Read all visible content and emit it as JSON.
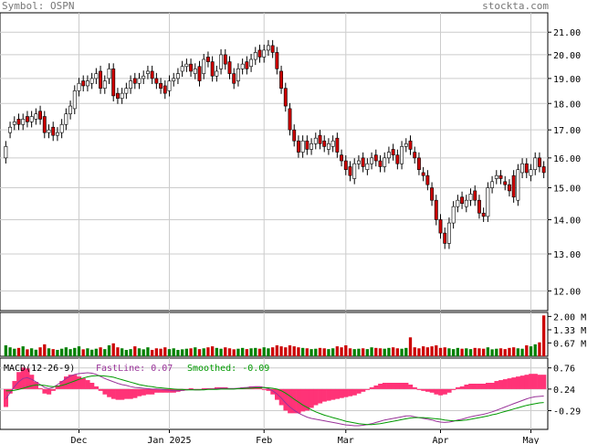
{
  "header": {
    "symbol": "Symbol: OSPN",
    "site": "stockta.com"
  },
  "colors": {
    "up": "#ffffff",
    "down": "#cc0000",
    "vol_up": "#008000",
    "vol_down": "#cc0000",
    "fast": "#993399",
    "smooth": "#009900",
    "hist": "#ff3377",
    "grid": "#cccccc"
  },
  "chart_data": [
    {
      "type": "candlestick",
      "ticker": "OSPN",
      "x_tick_labels": [
        "Dec",
        "Jan 2025",
        "Feb",
        "Mar",
        "Apr",
        "May"
      ],
      "y_tick_labels": [
        "21.00",
        "20.00",
        "19.00",
        "18.00",
        "17.00",
        "16.00",
        "15.00",
        "14.00",
        "13.00",
        "12.00"
      ],
      "y_ticks": [
        21,
        20,
        19,
        18,
        17,
        16,
        15,
        14,
        13,
        12
      ],
      "ylim": [
        11.5,
        21.9
      ],
      "scale": "log",
      "grid": true,
      "month_start_index": [
        17,
        38,
        60,
        79,
        101,
        122
      ],
      "close": [
        16.4,
        17.1,
        17.3,
        17.2,
        17.4,
        17.3,
        17.5,
        17.6,
        17.4,
        16.9,
        17.0,
        16.8,
        16.9,
        17.2,
        17.6,
        17.9,
        18.5,
        18.8,
        18.7,
        18.9,
        19.0,
        19.2,
        18.6,
        18.9,
        19.4,
        18.3,
        18.2,
        18.4,
        18.6,
        18.9,
        18.8,
        19.0,
        19.1,
        19.3,
        19.0,
        18.8,
        18.6,
        18.4,
        18.9,
        19.0,
        19.2,
        19.5,
        19.6,
        19.3,
        19.4,
        18.9,
        19.8,
        19.7,
        19.1,
        19.3,
        20.0,
        19.6,
        19.2,
        18.8,
        19.4,
        19.6,
        19.4,
        19.8,
        20.1,
        19.9,
        20.2,
        20.4,
        20.1,
        19.4,
        18.6,
        17.9,
        17.0,
        16.6,
        16.2,
        16.6,
        16.3,
        16.5,
        16.7,
        16.5,
        16.4,
        16.5,
        16.6,
        16.2,
        15.9,
        15.6,
        15.4,
        15.8,
        15.9,
        15.7,
        15.8,
        16.0,
        15.9,
        15.7,
        16.0,
        16.2,
        16.1,
        15.8,
        16.4,
        16.5,
        16.3,
        16.0,
        15.6,
        15.4,
        15.1,
        14.6,
        14.0,
        13.6,
        13.3,
        13.9,
        14.4,
        14.6,
        14.5,
        14.6,
        14.8,
        14.6,
        14.2,
        14.1,
        15.0,
        15.2,
        15.4,
        15.3,
        15.1,
        14.9,
        14.7,
        15.6,
        15.8,
        15.5,
        15.6,
        16.0,
        15.7,
        15.5
      ],
      "open": [
        16.0,
        16.9,
        17.2,
        17.4,
        17.2,
        17.5,
        17.3,
        17.4,
        17.7,
        17.5,
        16.9,
        17.1,
        16.8,
        16.9,
        17.2,
        17.6,
        17.8,
        18.5,
        18.9,
        18.7,
        18.8,
        19.0,
        19.3,
        18.6,
        19.0,
        19.4,
        18.4,
        18.2,
        18.4,
        18.6,
        19.0,
        18.8,
        19.0,
        19.2,
        19.3,
        19.0,
        18.8,
        18.7,
        18.5,
        18.9,
        19.0,
        19.3,
        19.5,
        19.6,
        19.2,
        19.5,
        19.2,
        19.9,
        19.7,
        19.1,
        19.4,
        20.0,
        19.7,
        19.2,
        18.9,
        19.4,
        19.7,
        19.5,
        19.8,
        20.2,
        19.9,
        20.2,
        20.4,
        20.1,
        19.3,
        18.6,
        17.8,
        17.0,
        16.6,
        16.2,
        16.6,
        16.3,
        16.5,
        16.8,
        16.6,
        16.3,
        16.4,
        16.7,
        16.1,
        15.9,
        15.7,
        15.3,
        15.8,
        16.0,
        15.6,
        15.8,
        16.1,
        15.9,
        15.7,
        16.0,
        16.3,
        16.1,
        15.8,
        16.4,
        16.6,
        16.2,
        16.0,
        15.5,
        15.4,
        15.0,
        14.6,
        14.0,
        13.6,
        13.3,
        13.9,
        14.4,
        14.7,
        14.4,
        14.6,
        14.9,
        14.6,
        14.2,
        14.1,
        15.0,
        15.3,
        15.4,
        15.2,
        15.1,
        15.4,
        14.6,
        15.5,
        15.8,
        15.4,
        15.6,
        16.0,
        15.7
      ]
    },
    {
      "type": "bar",
      "name": "Volume",
      "y_tick_labels": [
        "2.00 M",
        "1.33 M",
        "0.67 M"
      ],
      "y_ticks": [
        2.0,
        1.33,
        0.67
      ],
      "ylim": [
        0,
        2.2
      ],
      "values": [
        0.55,
        0.45,
        0.38,
        0.42,
        0.5,
        0.35,
        0.4,
        0.33,
        0.45,
        0.6,
        0.4,
        0.36,
        0.32,
        0.38,
        0.45,
        0.36,
        0.42,
        0.5,
        0.35,
        0.4,
        0.33,
        0.38,
        0.45,
        0.36,
        0.55,
        0.65,
        0.45,
        0.4,
        0.32,
        0.36,
        0.5,
        0.4,
        0.35,
        0.45,
        0.32,
        0.4,
        0.38,
        0.45,
        0.36,
        0.4,
        0.32,
        0.35,
        0.38,
        0.4,
        0.45,
        0.36,
        0.4,
        0.45,
        0.5,
        0.42,
        0.38,
        0.45,
        0.4,
        0.35,
        0.38,
        0.42,
        0.36,
        0.4,
        0.42,
        0.38,
        0.45,
        0.4,
        0.45,
        0.55,
        0.5,
        0.45,
        0.55,
        0.5,
        0.45,
        0.42,
        0.4,
        0.36,
        0.38,
        0.42,
        0.4,
        0.36,
        0.4,
        0.5,
        0.45,
        0.55,
        0.4,
        0.36,
        0.38,
        0.4,
        0.36,
        0.45,
        0.42,
        0.4,
        0.38,
        0.42,
        0.45,
        0.4,
        0.38,
        0.42,
        0.95,
        0.45,
        0.4,
        0.5,
        0.45,
        0.5,
        0.55,
        0.42,
        0.45,
        0.4,
        0.36,
        0.42,
        0.38,
        0.4,
        0.36,
        0.42,
        0.4,
        0.38,
        0.45,
        0.35,
        0.38,
        0.4,
        0.36,
        0.42,
        0.45,
        0.4,
        0.38,
        0.55,
        0.5,
        0.6,
        0.7,
        2.05
      ]
    },
    {
      "type": "line",
      "name": "MACD",
      "title": "MACD(12-26-9)",
      "fast_label": "FastLine: 0.07",
      "smooth_label": "Smoothed: -0.09",
      "y_tick_labels": [
        "0.76",
        "0.24",
        "-0.29"
      ],
      "y_ticks": [
        0.76,
        0.24,
        -0.29
      ],
      "ylim": [
        -0.75,
        1.0
      ],
      "fast": [
        0.0,
        0.15,
        0.3,
        0.42,
        0.5,
        0.52,
        0.48,
        0.42,
        0.35,
        0.28,
        0.25,
        0.28,
        0.35,
        0.42,
        0.5,
        0.56,
        0.6,
        0.62,
        0.63,
        0.64,
        0.63,
        0.6,
        0.55,
        0.5,
        0.46,
        0.42,
        0.38,
        0.35,
        0.33,
        0.3,
        0.28,
        0.27,
        0.26,
        0.25,
        0.24,
        0.24,
        0.23,
        0.22,
        0.21,
        0.2,
        0.2,
        0.21,
        0.22,
        0.23,
        0.22,
        0.22,
        0.23,
        0.24,
        0.24,
        0.25,
        0.26,
        0.26,
        0.25,
        0.25,
        0.26,
        0.27,
        0.28,
        0.29,
        0.3,
        0.3,
        0.28,
        0.25,
        0.2,
        0.12,
        0.02,
        -0.1,
        -0.2,
        -0.28,
        -0.35,
        -0.4,
        -0.45,
        -0.48,
        -0.5,
        -0.52,
        -0.54,
        -0.56,
        -0.58,
        -0.6,
        -0.62,
        -0.64,
        -0.65,
        -0.66,
        -0.66,
        -0.65,
        -0.63,
        -0.61,
        -0.58,
        -0.55,
        -0.52,
        -0.5,
        -0.48,
        -0.46,
        -0.44,
        -0.42,
        -0.42,
        -0.44,
        -0.46,
        -0.48,
        -0.5,
        -0.52,
        -0.55,
        -0.57,
        -0.58,
        -0.57,
        -0.55,
        -0.52,
        -0.5,
        -0.47,
        -0.44,
        -0.42,
        -0.4,
        -0.38,
        -0.35,
        -0.32,
        -0.28,
        -0.24,
        -0.2,
        -0.16,
        -0.12,
        -0.08,
        -0.04,
        0.0,
        0.03,
        0.05,
        0.06,
        0.07
      ],
      "smoothed": [
        0.2,
        0.2,
        0.21,
        0.23,
        0.26,
        0.29,
        0.32,
        0.34,
        0.34,
        0.33,
        0.31,
        0.3,
        0.31,
        0.33,
        0.36,
        0.4,
        0.44,
        0.48,
        0.51,
        0.54,
        0.56,
        0.57,
        0.57,
        0.56,
        0.55,
        0.53,
        0.5,
        0.47,
        0.44,
        0.41,
        0.38,
        0.35,
        0.33,
        0.31,
        0.3,
        0.28,
        0.27,
        0.26,
        0.25,
        0.24,
        0.23,
        0.23,
        0.22,
        0.22,
        0.22,
        0.22,
        0.22,
        0.23,
        0.23,
        0.23,
        0.24,
        0.24,
        0.24,
        0.24,
        0.25,
        0.25,
        0.26,
        0.26,
        0.27,
        0.27,
        0.28,
        0.27,
        0.26,
        0.24,
        0.2,
        0.14,
        0.07,
        -0.01,
        -0.08,
        -0.15,
        -0.21,
        -0.27,
        -0.32,
        -0.36,
        -0.4,
        -0.43,
        -0.46,
        -0.49,
        -0.52,
        -0.55,
        -0.57,
        -0.59,
        -0.61,
        -0.62,
        -0.63,
        -0.63,
        -0.62,
        -0.61,
        -0.59,
        -0.57,
        -0.55,
        -0.53,
        -0.51,
        -0.49,
        -0.47,
        -0.46,
        -0.46,
        -0.46,
        -0.47,
        -0.48,
        -0.49,
        -0.5,
        -0.52,
        -0.53,
        -0.54,
        -0.54,
        -0.53,
        -0.52,
        -0.5,
        -0.48,
        -0.46,
        -0.44,
        -0.42,
        -0.39,
        -0.37,
        -0.34,
        -0.31,
        -0.28,
        -0.25,
        -0.22,
        -0.19,
        -0.16,
        -0.14,
        -0.12,
        -0.1,
        -0.09
      ]
    }
  ]
}
